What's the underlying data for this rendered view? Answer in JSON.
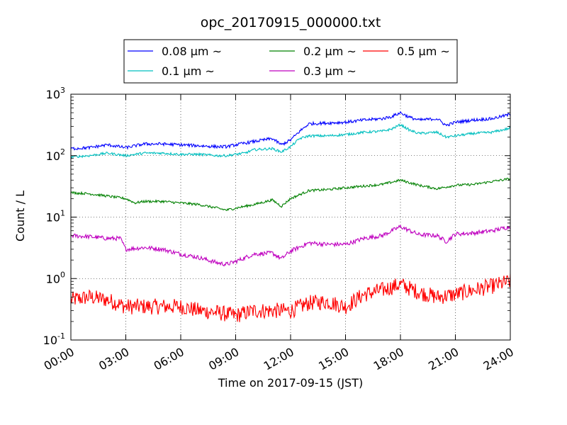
{
  "chart_data": {
    "type": "line",
    "title": "opc_20170915_000000.txt",
    "xlabel": "Time on 2017-09-15 (JST)",
    "ylabel": "Count / L",
    "yscale": "log",
    "ylim": [
      0.1,
      1000
    ],
    "xlim": [
      0,
      24
    ],
    "x_unit": "hours",
    "grid": true,
    "legend_position": "top-center",
    "x_ticks": [
      {
        "value": 0,
        "label": "00:00"
      },
      {
        "value": 3,
        "label": "03:00"
      },
      {
        "value": 6,
        "label": "06:00"
      },
      {
        "value": 9,
        "label": "09:00"
      },
      {
        "value": 12,
        "label": "12:00"
      },
      {
        "value": 15,
        "label": "15:00"
      },
      {
        "value": 18,
        "label": "18:00"
      },
      {
        "value": 21,
        "label": "21:00"
      },
      {
        "value": 24,
        "label": "24:00"
      }
    ],
    "y_ticks": [
      {
        "value": 0.1,
        "base": "10",
        "exp": "-1"
      },
      {
        "value": 1,
        "base": "10",
        "exp": "0"
      },
      {
        "value": 10,
        "base": "10",
        "exp": "1"
      },
      {
        "value": 100,
        "base": "10",
        "exp": "2"
      },
      {
        "value": 1000,
        "base": "10",
        "exp": "3"
      }
    ],
    "series": [
      {
        "name": "0.08 μm ~",
        "color": "#0000ff",
        "x": [
          0,
          1,
          2,
          3,
          4,
          5,
          6,
          7,
          8,
          8.5,
          9,
          9.5,
          10,
          11,
          11.5,
          12,
          12.5,
          13,
          14,
          15,
          16,
          17,
          17.5,
          18,
          18.5,
          19,
          20,
          20.5,
          21,
          22,
          23,
          24
        ],
        "y": [
          130,
          135,
          150,
          135,
          155,
          155,
          150,
          145,
          140,
          140,
          150,
          160,
          170,
          190,
          150,
          180,
          250,
          330,
          340,
          350,
          380,
          400,
          430,
          500,
          420,
          380,
          400,
          310,
          350,
          380,
          400,
          470
        ]
      },
      {
        "name": "0.1 μm ~",
        "color": "#00bfbf",
        "x": [
          0,
          1,
          2,
          3,
          4,
          5,
          6,
          7,
          8,
          8.5,
          9,
          9.5,
          10,
          11,
          11.5,
          12,
          12.5,
          13,
          14,
          15,
          16,
          17,
          17.5,
          18,
          18.5,
          19,
          20,
          20.5,
          21,
          22,
          23,
          24
        ],
        "y": [
          95,
          100,
          110,
          100,
          110,
          110,
          105,
          105,
          100,
          100,
          105,
          110,
          125,
          130,
          115,
          140,
          190,
          210,
          210,
          220,
          240,
          250,
          270,
          320,
          260,
          230,
          240,
          200,
          210,
          230,
          240,
          280
        ]
      },
      {
        "name": "0.2 μm ~",
        "color": "#008000",
        "x": [
          0,
          1,
          2,
          3,
          3.5,
          4,
          5,
          6,
          7,
          8,
          8.5,
          9,
          10,
          11,
          11.5,
          12,
          13,
          14,
          15,
          16,
          17,
          18,
          19,
          20,
          21,
          22,
          23,
          24
        ],
        "y": [
          25,
          24,
          22,
          20,
          17,
          18,
          18,
          17,
          16,
          14,
          13,
          14,
          16,
          19,
          15,
          20,
          27,
          28,
          30,
          32,
          34,
          40,
          33,
          29,
          33,
          34,
          38,
          42
        ]
      },
      {
        "name": "0.3 μm ~",
        "color": "#bf00bf",
        "x": [
          0,
          1,
          2,
          2.7,
          3,
          4,
          5,
          6,
          7,
          8,
          8.5,
          9,
          10,
          11,
          11.5,
          12,
          13,
          14,
          15,
          16,
          17,
          18,
          19,
          20,
          20.5,
          21,
          22,
          23,
          24
        ],
        "y": [
          5,
          4.8,
          4.5,
          4.5,
          3,
          3.2,
          3,
          2.5,
          2.2,
          1.8,
          1.7,
          1.9,
          2.5,
          2.6,
          2.1,
          2.8,
          3.8,
          3.6,
          3.6,
          4.5,
          5,
          7,
          5.2,
          5,
          4,
          5.3,
          5.5,
          6,
          7
        ]
      },
      {
        "name": "0.5 μm ~",
        "color": "#ff0000",
        "x": [
          0,
          1,
          2,
          3,
          4,
          5,
          6,
          7,
          8,
          9,
          10,
          11,
          12,
          13,
          14,
          15,
          16,
          17,
          18,
          19,
          20,
          21,
          22,
          23,
          24
        ],
        "y": [
          0.45,
          0.5,
          0.45,
          0.35,
          0.35,
          0.35,
          0.35,
          0.3,
          0.28,
          0.25,
          0.3,
          0.3,
          0.3,
          0.4,
          0.42,
          0.35,
          0.55,
          0.65,
          0.8,
          0.6,
          0.5,
          0.55,
          0.65,
          0.75,
          0.9
        ]
      }
    ]
  }
}
